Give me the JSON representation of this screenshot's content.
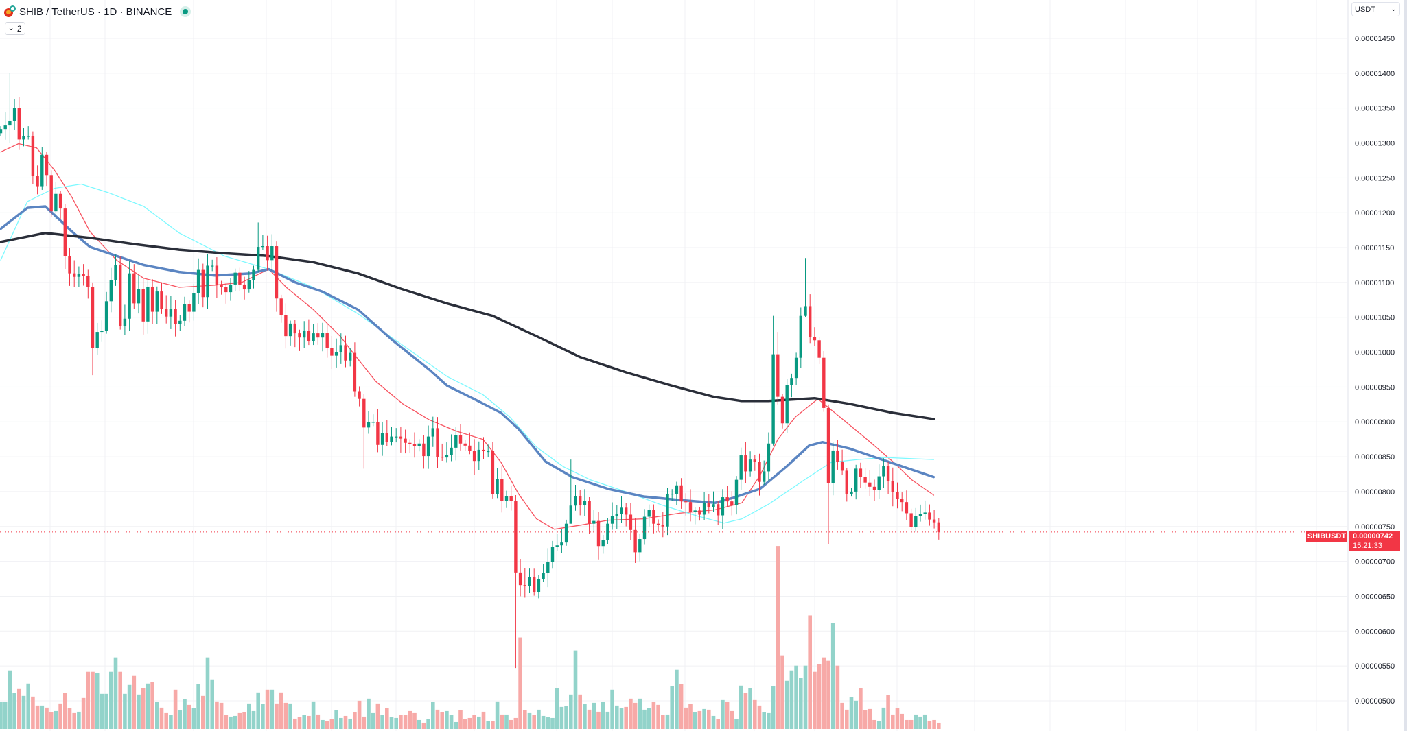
{
  "header": {
    "title": "SHIB / TetherUS · 1D · BINANCE",
    "indicator_toggle_count": "2",
    "market_status": "open"
  },
  "currency_select": "USDT",
  "last_price": {
    "symbol": "SHIBUSDT",
    "price": "0.00000742",
    "countdown": "15:21:33"
  },
  "colors": {
    "up": "#089981",
    "down": "#f23645",
    "volume_up": "#92d3ca",
    "volume_down": "#f7a9a7",
    "ma_red": "#f7525f",
    "ma_cyan": "#7df9ff",
    "ma_blue": "#5b85c2",
    "ma_black": "#2a2e39"
  },
  "chart_data": {
    "type": "candlestick",
    "title": "SHIB / TetherUS · 1D · BINANCE",
    "price_unit": "1e-8 USDT",
    "ylim": [
      457,
      1505
    ],
    "y_ticks": [
      "0.00001450",
      "0.00001400",
      "0.00001350",
      "0.00001300",
      "0.00001250",
      "0.00001200",
      "0.00001150",
      "0.00001100",
      "0.00001050",
      "0.00001000",
      "0.00000950",
      "0.00000900",
      "0.00000850",
      "0.00000800",
      "0.00000750",
      "0.00000700",
      "0.00000650",
      "0.00000600",
      "0.00000550",
      "0.00000500"
    ],
    "y_tick_values": [
      1450,
      1400,
      1350,
      1300,
      1250,
      1200,
      1150,
      1100,
      1050,
      1000,
      950,
      900,
      850,
      800,
      750,
      700,
      650,
      600,
      550,
      500
    ],
    "grid": true,
    "close": [
      1320,
      1325,
      1332,
      1350,
      1305,
      1310,
      1310,
      1253,
      1238,
      1283,
      1254,
      1202,
      1227,
      1206,
      1138,
      1113,
      1108,
      1112,
      1109,
      1093,
      1006,
      1029,
      1031,
      1073,
      1103,
      1125,
      1037,
      1048,
      1113,
      1070,
      1091,
      1044,
      1094,
      1058,
      1087,
      1062,
      1051,
      1062,
      1040,
      1045,
      1069,
      1058,
      1085,
      1118,
      1079,
      1124,
      1124,
      1096,
      1093,
      1086,
      1097,
      1114,
      1097,
      1090,
      1103,
      1118,
      1151,
      1152,
      1132,
      1152,
      1077,
      1053,
      1023,
      1041,
      1027,
      1021,
      1031,
      1016,
      1027,
      1021,
      1028,
      1006,
      995,
      1000,
      1010,
      988,
      999,
      944,
      933,
      892,
      900,
      900,
      867,
      884,
      871,
      879,
      879,
      876,
      870,
      868,
      865,
      869,
      851,
      879,
      891,
      850,
      849,
      853,
      863,
      881,
      869,
      866,
      858,
      844,
      860,
      858,
      858,
      796,
      818,
      787,
      794,
      787,
      684,
      666,
      665,
      677,
      656,
      675,
      683,
      699,
      721,
      723,
      727,
      754,
      780,
      794,
      781,
      787,
      754,
      758,
      722,
      731,
      754,
      765,
      768,
      777,
      767,
      745,
      713,
      732,
      764,
      774,
      754,
      752,
      750,
      797,
      797,
      809,
      786,
      785,
      771,
      773,
      767,
      784,
      778,
      782,
      766,
      792,
      786,
      781,
      817,
      852,
      829,
      846,
      843,
      814,
      829,
      869,
      997,
      936,
      898,
      953,
      963,
      992,
      1052,
      1066,
      1022,
      1017,
      992,
      920,
      812,
      859,
      843,
      830,
      797,
      800,
      833,
      821,
      813,
      807,
      802,
      822,
      837,
      815,
      799,
      790,
      785,
      769,
      749,
      765,
      768,
      770,
      760,
      756,
      742
    ],
    "wick_overrides": [
      {
        "i": 2,
        "high": 1400,
        "low": 1300
      },
      {
        "i": 4,
        "high": 1366,
        "low": 1290
      },
      {
        "i": 20,
        "high": 1100,
        "low": 967
      },
      {
        "i": 56,
        "high": 1186,
        "low": 1115
      },
      {
        "i": 79,
        "high": 940,
        "low": 833
      },
      {
        "i": 112,
        "high": 795,
        "low": 547
      },
      {
        "i": 114,
        "high": 690,
        "low": 648
      },
      {
        "i": 124,
        "high": 846,
        "low": 760
      },
      {
        "i": 168,
        "high": 1052,
        "low": 866
      },
      {
        "i": 169,
        "high": 1029,
        "low": 925
      },
      {
        "i": 175,
        "high": 1135,
        "low": 1050
      },
      {
        "i": 180,
        "high": 925,
        "low": 725
      }
    ],
    "volume_relative": [
      117,
      117,
      255,
      156,
      174,
      144,
      198,
      141,
      102,
      102,
      93,
      72,
      78,
      111,
      156,
      90,
      69,
      75,
      135,
      249,
      249,
      243,
      153,
      153,
      249,
      312,
      249,
      153,
      192,
      231,
      150,
      177,
      198,
      204,
      117,
      93,
      69,
      60,
      171,
      81,
      129,
      105,
      90,
      195,
      144,
      312,
      216,
      120,
      114,
      60,
      54,
      57,
      69,
      72,
      111,
      78,
      159,
      108,
      171,
      171,
      111,
      159,
      114,
      111,
      45,
      51,
      60,
      57,
      120,
      63,
      39,
      33,
      42,
      81,
      48,
      57,
      45,
      72,
      123,
      54,
      132,
      69,
      111,
      60,
      90,
      51,
      48,
      60,
      60,
      78,
      69,
      39,
      27,
      42,
      117,
      84,
      72,
      78,
      60,
      30,
      81,
      42,
      48,
      60,
      54,
      75,
      33,
      33,
      120,
      63,
      63,
      39,
      48,
      399,
      81,
      69,
      60,
      84,
      57,
      51,
      48,
      177,
      96,
      99,
      150,
      342,
      150,
      108,
      84,
      114,
      75,
      117,
      75,
      171,
      102,
      90,
      96,
      132,
      114,
      132,
      84,
      90,
      117,
      105,
      60,
      63,
      186,
      258,
      195,
      93,
      108,
      72,
      78,
      87,
      84,
      57,
      42,
      126,
      117,
      78,
      42,
      189,
      156,
      177,
      126,
      102,
      72,
      69,
      186,
      798,
      321,
      210,
      255,
      276,
      222,
      276,
      495,
      249,
      282,
      312,
      297,
      462,
      276,
      114,
      84,
      138,
      123,
      177,
      81,
      87,
      39,
      33,
      93,
      147,
      63,
      90,
      66,
      39,
      39,
      63,
      54,
      63,
      36,
      39,
      27,
      33
    ],
    "moving_averages": [
      {
        "name": "ma-red-short",
        "color_key": "ma_red",
        "points": [
          [
            0,
            1287
          ],
          [
            3.9,
            1299
          ],
          [
            7.8,
            1293
          ],
          [
            11.7,
            1261
          ],
          [
            15.5,
            1222
          ],
          [
            19.4,
            1173
          ],
          [
            25.2,
            1132
          ],
          [
            31.1,
            1106
          ],
          [
            38.8,
            1093
          ],
          [
            46.6,
            1096
          ],
          [
            52.4,
            1100
          ],
          [
            58.3,
            1119
          ],
          [
            62.1,
            1093
          ],
          [
            68,
            1061
          ],
          [
            73.8,
            1023
          ],
          [
            77.7,
            990
          ],
          [
            81.6,
            958
          ],
          [
            87.4,
            926
          ],
          [
            93.2,
            903
          ],
          [
            99,
            887
          ],
          [
            104.9,
            875
          ],
          [
            108.8,
            842
          ],
          [
            112.6,
            797
          ],
          [
            116.5,
            761
          ],
          [
            120.4,
            746
          ],
          [
            126.2,
            752
          ],
          [
            132.1,
            759
          ],
          [
            139.8,
            761
          ],
          [
            147.6,
            769
          ],
          [
            155.4,
            774
          ],
          [
            161.2,
            784
          ],
          [
            165.1,
            823
          ],
          [
            169,
            875
          ],
          [
            172.8,
            907
          ],
          [
            177.7,
            933
          ],
          [
            182.5,
            907
          ],
          [
            188.4,
            875
          ],
          [
            194.2,
            842
          ],
          [
            198.1,
            817
          ],
          [
            202.9,
            795
          ]
        ]
      },
      {
        "name": "ma-cyan",
        "color_key": "ma_cyan",
        "points": [
          [
            0,
            1132
          ],
          [
            5.8,
            1216
          ],
          [
            11.7,
            1235
          ],
          [
            17.5,
            1241
          ],
          [
            23.3,
            1229
          ],
          [
            31.1,
            1209
          ],
          [
            38.8,
            1171
          ],
          [
            48.6,
            1138
          ],
          [
            58.3,
            1119
          ],
          [
            68,
            1093
          ],
          [
            77.7,
            1055
          ],
          [
            87.4,
            1010
          ],
          [
            97.1,
            965
          ],
          [
            104.9,
            939
          ],
          [
            110.7,
            907
          ],
          [
            116.5,
            864
          ],
          [
            122.3,
            836
          ],
          [
            128.2,
            817
          ],
          [
            135.9,
            800
          ],
          [
            143.7,
            781
          ],
          [
            151.5,
            765
          ],
          [
            157.3,
            755
          ],
          [
            161.2,
            761
          ],
          [
            167,
            782
          ],
          [
            174.8,
            817
          ],
          [
            180.6,
            842
          ],
          [
            186.4,
            846
          ],
          [
            192.3,
            849
          ],
          [
            202.9,
            846
          ]
        ]
      },
      {
        "name": "ma-blue",
        "color_key": "ma_blue",
        "points": [
          [
            0,
            1177
          ],
          [
            5.8,
            1207
          ],
          [
            9.7,
            1209
          ],
          [
            15.5,
            1173
          ],
          [
            19.4,
            1151
          ],
          [
            25.2,
            1138
          ],
          [
            31.1,
            1125
          ],
          [
            38.8,
            1115
          ],
          [
            46.6,
            1110
          ],
          [
            54.4,
            1113
          ],
          [
            58.3,
            1119
          ],
          [
            64.1,
            1100
          ],
          [
            69.9,
            1087
          ],
          [
            77.7,
            1061
          ],
          [
            85.4,
            1016
          ],
          [
            93.2,
            975
          ],
          [
            97.1,
            952
          ],
          [
            102.9,
            933
          ],
          [
            108.8,
            913
          ],
          [
            112.6,
            890
          ],
          [
            118.5,
            843
          ],
          [
            124.3,
            821
          ],
          [
            132.1,
            804
          ],
          [
            139.8,
            793
          ],
          [
            147.6,
            788
          ],
          [
            155.4,
            784
          ],
          [
            159.2,
            791
          ],
          [
            165.1,
            804
          ],
          [
            170.9,
            836
          ],
          [
            175.8,
            866
          ],
          [
            178.7,
            871
          ],
          [
            184.5,
            862
          ],
          [
            190.3,
            849
          ],
          [
            196.1,
            836
          ],
          [
            202.9,
            821
          ]
        ]
      },
      {
        "name": "ma-black-long",
        "color_key": "ma_black",
        "points": [
          [
            0,
            1158
          ],
          [
            9.7,
            1171
          ],
          [
            19.4,
            1164
          ],
          [
            29,
            1155
          ],
          [
            38.8,
            1147
          ],
          [
            48.5,
            1142
          ],
          [
            58,
            1138
          ],
          [
            68,
            1129
          ],
          [
            77.7,
            1113
          ],
          [
            87,
            1091
          ],
          [
            97,
            1070
          ],
          [
            107,
            1052
          ],
          [
            116.5,
            1023
          ],
          [
            126,
            993
          ],
          [
            136,
            971
          ],
          [
            146,
            952
          ],
          [
            155,
            936
          ],
          [
            161,
            930
          ],
          [
            167,
            930
          ],
          [
            177,
            934
          ],
          [
            184.5,
            926
          ],
          [
            194,
            913
          ],
          [
            203,
            904
          ]
        ]
      }
    ],
    "last_price_value": 742
  }
}
